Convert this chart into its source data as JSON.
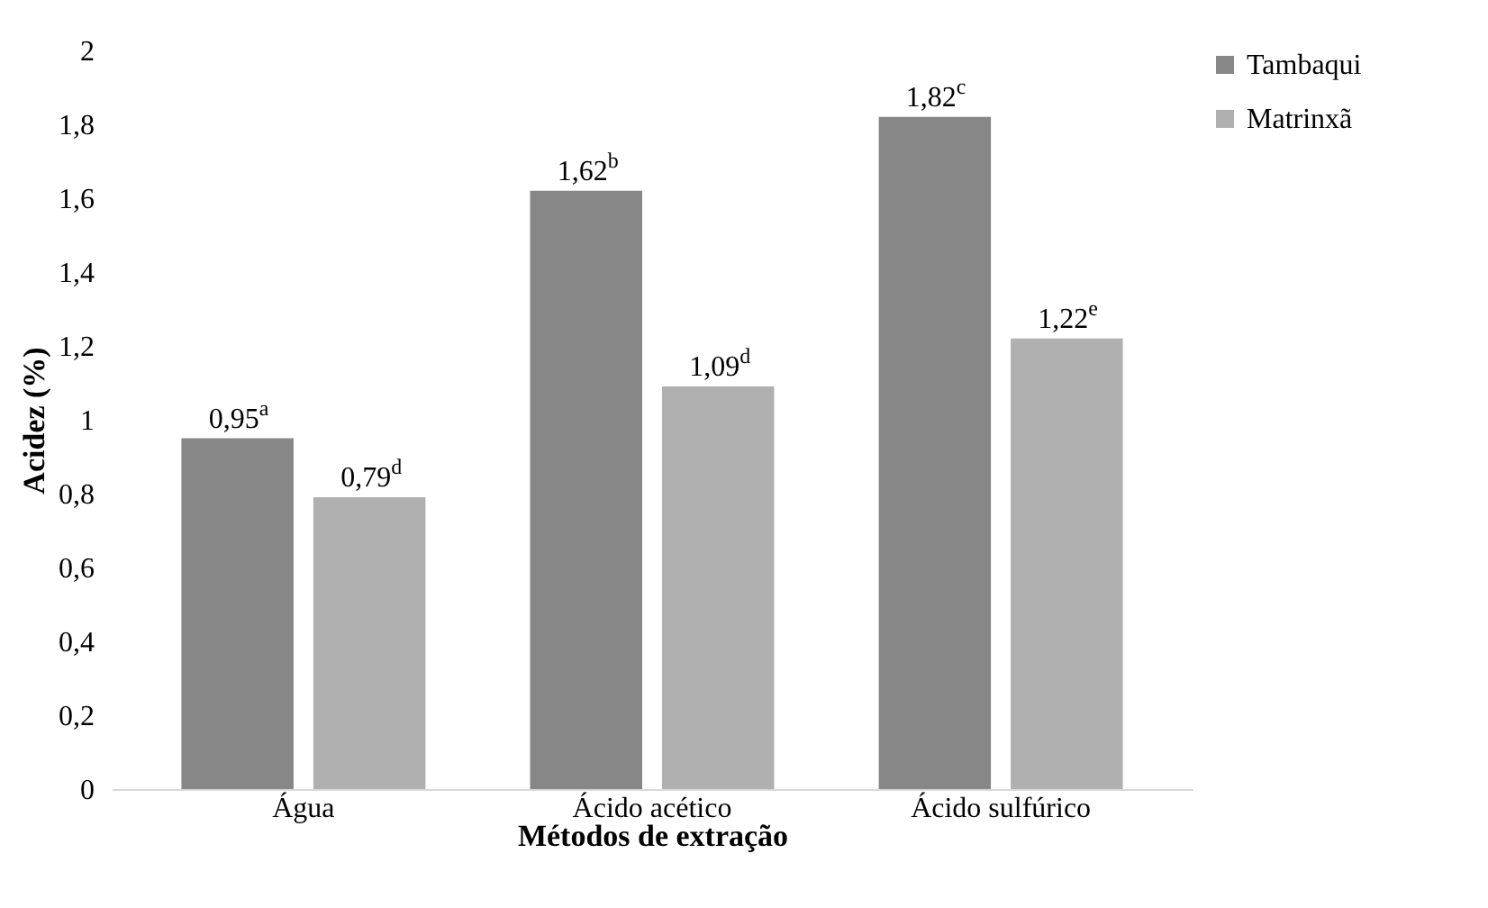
{
  "chart_data": {
    "type": "bar",
    "xlabel": "Métodos de extração",
    "ylabel": "Acidez (%)",
    "categories": [
      "Água",
      "Ácido acético",
      "Ácido sulfúrico"
    ],
    "series": [
      {
        "name": "Tambaqui",
        "color": "#878787",
        "values": [
          0.95,
          1.62,
          1.82
        ],
        "value_labels": [
          "0,95$^{a}$",
          "1,62$^{b}$",
          "1,82$^{c}$"
        ]
      },
      {
        "name": "Matrinxã",
        "color": "#b0b0b0",
        "values": [
          0.79,
          1.09,
          1.22
        ],
        "value_labels": [
          "0,79$^{d}$",
          "1,09$^{d}$",
          "1,22$^{e}$"
        ]
      }
    ],
    "ylim": [
      0,
      2
    ],
    "yticks": [
      0,
      {
        "value": 0.2,
        "label": "0,2"
      },
      {
        "value": 0.4,
        "label": "0,4"
      },
      {
        "value": 0.6,
        "label": "0,6"
      },
      {
        "value": 0.8,
        "label": "0,8"
      },
      1,
      {
        "value": 1.2,
        "label": "1,2"
      },
      {
        "value": 1.4,
        "label": "1,4"
      },
      {
        "value": 1.6,
        "label": "1,6"
      },
      {
        "value": 1.8,
        "label": "1,8"
      },
      2
    ],
    "grid": false,
    "legend": "right"
  }
}
